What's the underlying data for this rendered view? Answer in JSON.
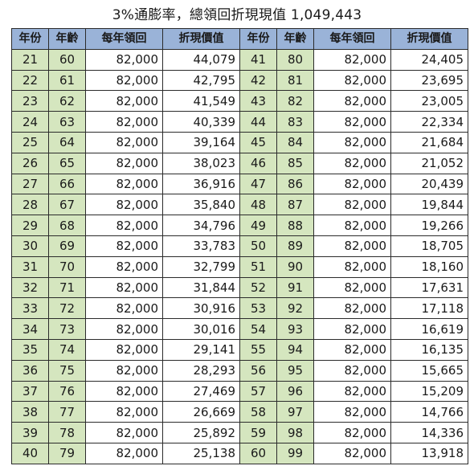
{
  "title": "3%通膨率，總領回折現現值 1,049,443",
  "headers": [
    "年份",
    "年齡",
    "每年領回",
    "折現價值",
    "年份",
    "年齡",
    "每年領回",
    "折現價值"
  ],
  "rows": [
    {
      "left": {
        "year": "21",
        "age": "60",
        "receive": "82,000",
        "pv": "44,079"
      },
      "right": {
        "year": "41",
        "age": "80",
        "receive": "82,000",
        "pv": "24,405"
      }
    },
    {
      "left": {
        "year": "22",
        "age": "61",
        "receive": "82,000",
        "pv": "42,795"
      },
      "right": {
        "year": "42",
        "age": "81",
        "receive": "82,000",
        "pv": "23,695"
      }
    },
    {
      "left": {
        "year": "23",
        "age": "62",
        "receive": "82,000",
        "pv": "41,549"
      },
      "right": {
        "year": "43",
        "age": "82",
        "receive": "82,000",
        "pv": "23,005"
      }
    },
    {
      "left": {
        "year": "24",
        "age": "63",
        "receive": "82,000",
        "pv": "40,339"
      },
      "right": {
        "year": "44",
        "age": "83",
        "receive": "82,000",
        "pv": "22,334"
      }
    },
    {
      "left": {
        "year": "25",
        "age": "64",
        "receive": "82,000",
        "pv": "39,164"
      },
      "right": {
        "year": "45",
        "age": "84",
        "receive": "82,000",
        "pv": "21,684"
      }
    },
    {
      "left": {
        "year": "26",
        "age": "65",
        "receive": "82,000",
        "pv": "38,023"
      },
      "right": {
        "year": "46",
        "age": "85",
        "receive": "82,000",
        "pv": "21,052"
      }
    },
    {
      "left": {
        "year": "27",
        "age": "66",
        "receive": "82,000",
        "pv": "36,916"
      },
      "right": {
        "year": "47",
        "age": "86",
        "receive": "82,000",
        "pv": "20,439"
      }
    },
    {
      "left": {
        "year": "28",
        "age": "67",
        "receive": "82,000",
        "pv": "35,840"
      },
      "right": {
        "year": "48",
        "age": "87",
        "receive": "82,000",
        "pv": "19,844"
      }
    },
    {
      "left": {
        "year": "29",
        "age": "68",
        "receive": "82,000",
        "pv": "34,796"
      },
      "right": {
        "year": "49",
        "age": "88",
        "receive": "82,000",
        "pv": "19,266"
      }
    },
    {
      "left": {
        "year": "30",
        "age": "69",
        "receive": "82,000",
        "pv": "33,783"
      },
      "right": {
        "year": "50",
        "age": "89",
        "receive": "82,000",
        "pv": "18,705"
      }
    },
    {
      "left": {
        "year": "31",
        "age": "70",
        "receive": "82,000",
        "pv": "32,799"
      },
      "right": {
        "year": "51",
        "age": "90",
        "receive": "82,000",
        "pv": "18,160"
      }
    },
    {
      "left": {
        "year": "32",
        "age": "71",
        "receive": "82,000",
        "pv": "31,844"
      },
      "right": {
        "year": "52",
        "age": "91",
        "receive": "82,000",
        "pv": "17,631"
      }
    },
    {
      "left": {
        "year": "33",
        "age": "72",
        "receive": "82,000",
        "pv": "30,916"
      },
      "right": {
        "year": "53",
        "age": "92",
        "receive": "82,000",
        "pv": "17,118"
      }
    },
    {
      "left": {
        "year": "34",
        "age": "73",
        "receive": "82,000",
        "pv": "30,016"
      },
      "right": {
        "year": "54",
        "age": "93",
        "receive": "82,000",
        "pv": "16,619"
      }
    },
    {
      "left": {
        "year": "35",
        "age": "74",
        "receive": "82,000",
        "pv": "29,141"
      },
      "right": {
        "year": "55",
        "age": "94",
        "receive": "82,000",
        "pv": "16,135"
      }
    },
    {
      "left": {
        "year": "36",
        "age": "75",
        "receive": "82,000",
        "pv": "28,293"
      },
      "right": {
        "year": "56",
        "age": "95",
        "receive": "82,000",
        "pv": "15,665"
      }
    },
    {
      "left": {
        "year": "37",
        "age": "76",
        "receive": "82,000",
        "pv": "27,469"
      },
      "right": {
        "year": "57",
        "age": "96",
        "receive": "82,000",
        "pv": "15,209"
      }
    },
    {
      "left": {
        "year": "38",
        "age": "77",
        "receive": "82,000",
        "pv": "26,669"
      },
      "right": {
        "year": "58",
        "age": "97",
        "receive": "82,000",
        "pv": "14,766"
      }
    },
    {
      "left": {
        "year": "39",
        "age": "78",
        "receive": "82,000",
        "pv": "25,892"
      },
      "right": {
        "year": "59",
        "age": "98",
        "receive": "82,000",
        "pv": "14,336"
      }
    },
    {
      "left": {
        "year": "40",
        "age": "79",
        "receive": "82,000",
        "pv": "25,138"
      },
      "right": {
        "year": "60",
        "age": "99",
        "receive": "82,000",
        "pv": "13,918"
      }
    }
  ],
  "colors": {
    "header_bg": "#9ab3d8",
    "year_age_bg": "#d5e6bf",
    "amount_bg": "#ffffff",
    "border": "#2b2b2b"
  }
}
